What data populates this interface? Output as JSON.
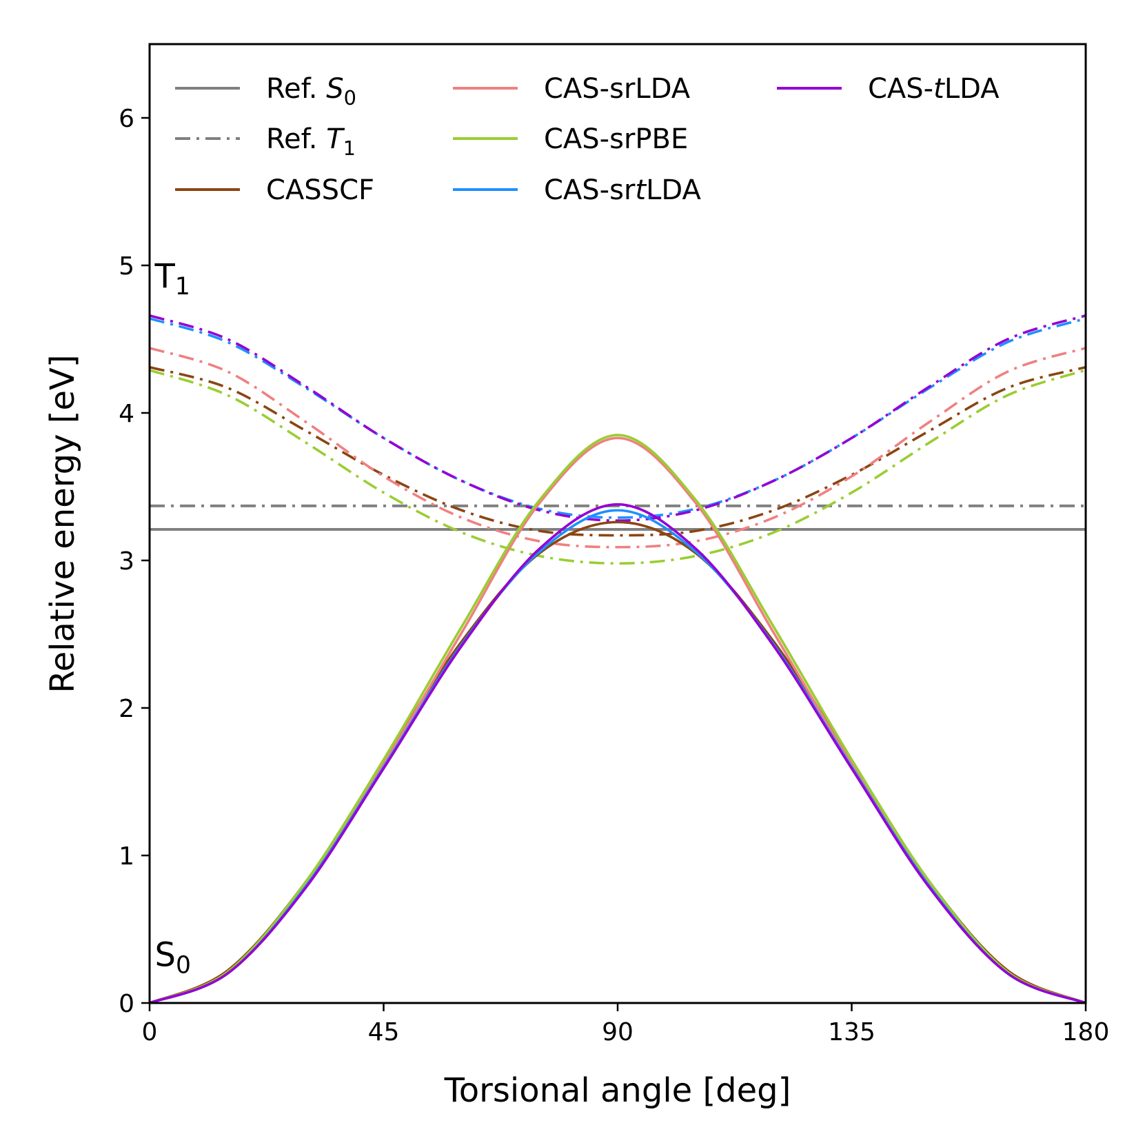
{
  "chart_data": {
    "type": "line",
    "xlabel": "Torsional angle [deg]",
    "ylabel": "Relative energy [eV]",
    "xlim": [
      0,
      180
    ],
    "ylim": [
      0,
      6.5
    ],
    "xticks": [
      "0",
      "45",
      "90",
      "135",
      "180"
    ],
    "yticks": [
      "0",
      "1",
      "2",
      "3",
      "4",
      "5",
      "6"
    ],
    "grid": false,
    "legend_position": "top",
    "annotations": {
      "t1": {
        "letter": "T",
        "sub": "1",
        "x": 1,
        "y": 4.85
      },
      "s0": {
        "letter": "S",
        "sub": "0",
        "x": 1,
        "y": 0.25
      }
    },
    "reference": [
      {
        "name": "Ref. S0",
        "prefix": "Ref. ",
        "symbol": "S",
        "sub": "0",
        "value": 3.21,
        "color": "#808080",
        "style": "solid"
      },
      {
        "name": "Ref. T1",
        "prefix": "Ref. ",
        "symbol": "T",
        "sub": "1",
        "value": 3.37,
        "color": "#808080",
        "style": "dashdot"
      }
    ],
    "x": [
      0,
      15,
      30,
      45,
      60,
      75,
      90,
      105,
      120,
      135,
      150,
      165,
      180
    ],
    "series": [
      {
        "name": "CASSCF",
        "color": "#8B4513",
        "s0": [
          0.0,
          0.22,
          0.82,
          1.64,
          2.45,
          3.05,
          3.26,
          3.05,
          2.45,
          1.64,
          0.82,
          0.22,
          0.0
        ],
        "t1": [
          4.31,
          4.17,
          3.88,
          3.58,
          3.34,
          3.2,
          3.17,
          3.2,
          3.34,
          3.58,
          3.88,
          4.17,
          4.31
        ]
      },
      {
        "name": "CAS-srLDA",
        "color": "#F08080",
        "s0": [
          0.0,
          0.21,
          0.81,
          1.62,
          2.51,
          3.39,
          3.83,
          3.39,
          2.51,
          1.62,
          0.81,
          0.21,
          0.0
        ],
        "t1": [
          4.44,
          4.28,
          3.94,
          3.57,
          3.29,
          3.13,
          3.09,
          3.13,
          3.29,
          3.57,
          3.94,
          4.28,
          4.44
        ]
      },
      {
        "name": "CAS-srPBE",
        "color": "#9ACD32",
        "s0": [
          0.0,
          0.21,
          0.82,
          1.65,
          2.55,
          3.41,
          3.85,
          3.41,
          2.55,
          1.65,
          0.82,
          0.21,
          0.0
        ],
        "t1": [
          4.29,
          4.12,
          3.8,
          3.46,
          3.19,
          3.03,
          2.98,
          3.03,
          3.19,
          3.46,
          3.8,
          4.12,
          4.29
        ]
      },
      {
        "name": "CAS-srtLDA",
        "prefix": "CAS-sr",
        "italic": "t",
        "suffix": "LDA",
        "color": "#1E90FF",
        "s0": [
          0.0,
          0.2,
          0.79,
          1.6,
          2.43,
          3.06,
          3.34,
          3.06,
          2.43,
          1.6,
          0.79,
          0.2,
          0.0
        ],
        "t1": [
          4.64,
          4.48,
          4.17,
          3.83,
          3.54,
          3.35,
          3.29,
          3.35,
          3.54,
          3.83,
          4.17,
          4.48,
          4.64
        ]
      },
      {
        "name": "CAS-tLDA",
        "prefix": "CAS-",
        "italic": "t",
        "suffix": "LDA",
        "color": "#9400D3",
        "s0": [
          0.0,
          0.2,
          0.78,
          1.59,
          2.42,
          3.08,
          3.38,
          3.08,
          2.42,
          1.59,
          0.78,
          0.2,
          0.0
        ],
        "t1": [
          4.66,
          4.5,
          4.18,
          3.83,
          3.54,
          3.34,
          3.27,
          3.34,
          3.54,
          3.83,
          4.18,
          4.5,
          4.66
        ]
      }
    ]
  }
}
